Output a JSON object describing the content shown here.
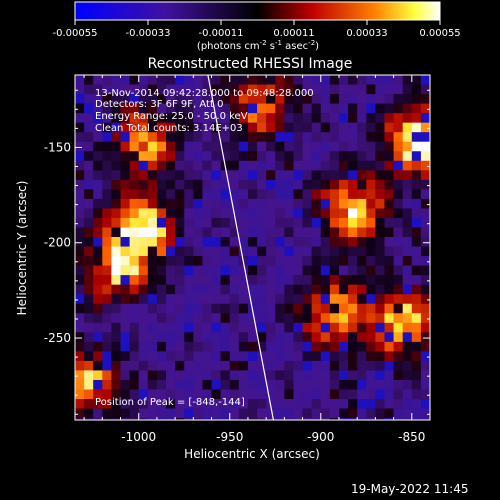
{
  "colorbar": {
    "ticks": [
      "-0.00055",
      "-0.00033",
      "-0.00011",
      "0.00011",
      "0.00033",
      "0.00055"
    ],
    "unit_prefix": "(photons cm",
    "unit_exp1": "-2",
    "unit_mid": " s",
    "unit_exp2": "-1",
    "unit_mid2": " asec",
    "unit_exp3": "-2",
    "unit_suffix": ")"
  },
  "annotations": {
    "time_range": "13-Nov-2014 09:42:28.000 to 09:48:28.000",
    "detectors": "Detectors: 3F 6F 9F, Att 0",
    "energy": "Energy Range: 25.0 - 50.0 keV",
    "clean": "Clean     Total counts: 3.14E+03",
    "peak": "Position of Peak = [-848,-144]"
  },
  "timestamp": "19-May-2022 11:45",
  "colors": {
    "background": "#000000",
    "text": "#ffffff"
  },
  "chart_data": {
    "type": "heatmap",
    "title": "Reconstructed RHESSI Image",
    "xlabel": "Heliocentric X (arcsec)",
    "ylabel": "Heliocentric Y (arcsec)",
    "xlim": [
      -1035,
      -840
    ],
    "ylim": [
      -293,
      -112
    ],
    "x_ticks": [
      -1000,
      -950,
      -900,
      -850
    ],
    "y_ticks": [
      -150,
      -200,
      -250
    ],
    "x_tick_labels": [
      "-1000",
      "-950",
      "-900",
      "-850"
    ],
    "y_tick_labels": [
      "-150",
      "-200",
      "-250"
    ],
    "colormap": "blue-purple-red-yellow-white",
    "clim": [
      -0.00055,
      0.00055
    ],
    "limb_line": [
      [
        -962,
        -112
      ],
      [
        -926,
        -293
      ]
    ],
    "peak_position": [
      -848,
      -144
    ],
    "bright_regions": [
      {
        "x": -1000,
        "y": -190,
        "level": 0.9
      },
      {
        "x": -1015,
        "y": -210,
        "level": 0.8
      },
      {
        "x": -1000,
        "y": -145,
        "level": 0.7
      },
      {
        "x": -885,
        "y": -180,
        "level": 0.85
      },
      {
        "x": -895,
        "y": -235,
        "level": 0.75
      },
      {
        "x": -848,
        "y": -144,
        "level": 1.0
      },
      {
        "x": -858,
        "y": -240,
        "level": 0.8
      },
      {
        "x": -1030,
        "y": -270,
        "level": 0.7
      },
      {
        "x": -935,
        "y": -125,
        "level": 0.6
      }
    ]
  }
}
